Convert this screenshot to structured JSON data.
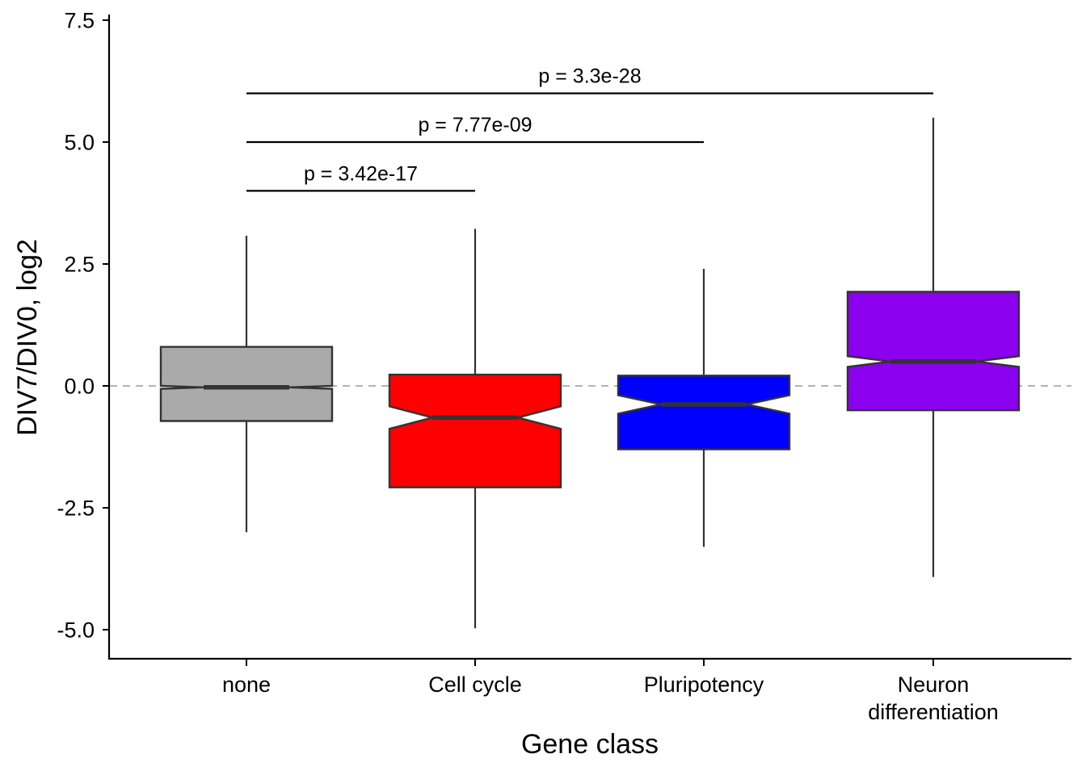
{
  "chart_data": {
    "type": "boxplot",
    "notched": true,
    "xlabel": "Gene class",
    "ylabel": "DIV7/DIV0, log2",
    "ylim": [
      -5.6,
      7.6
    ],
    "yticks": [
      -5.0,
      -2.5,
      0.0,
      2.5,
      5.0,
      7.5
    ],
    "ytick_labels": [
      "-5.0",
      "-2.5",
      "0.0",
      "2.5",
      "5.0",
      "7.5"
    ],
    "reference_line": {
      "y": 0.0,
      "style": "dashed",
      "color": "#b3b3b3"
    },
    "categories": [
      {
        "label": [
          "none"
        ],
        "color": "#aaaaaa",
        "whisker_low": -3.0,
        "q1": -0.72,
        "median": -0.03,
        "q3": 0.8,
        "whisker_high": 3.08,
        "notch_low": -0.06,
        "notch_high": 0.0
      },
      {
        "label": [
          "Cell cycle"
        ],
        "color": "#ff0000",
        "whisker_low": -4.97,
        "q1": -2.08,
        "median": -0.65,
        "q3": 0.23,
        "whisker_high": 3.22,
        "notch_low": -0.88,
        "notch_high": -0.42
      },
      {
        "label": [
          "Pluripotency"
        ],
        "color": "#0000ff",
        "whisker_low": -3.3,
        "q1": -1.3,
        "median": -0.38,
        "q3": 0.21,
        "whisker_high": 2.4,
        "notch_low": -0.57,
        "notch_high": -0.19
      },
      {
        "label": [
          "Neuron",
          "differentiation"
        ],
        "color": "#8b00ef",
        "whisker_low": -3.92,
        "q1": -0.5,
        "median": 0.5,
        "q3": 1.93,
        "whisker_high": 5.5,
        "notch_low": 0.39,
        "notch_high": 0.61
      }
    ],
    "comparisons": [
      {
        "from": 0,
        "to": 1,
        "y": 4.0,
        "label": "p = 3.42e-17"
      },
      {
        "from": 0,
        "to": 2,
        "y": 5.0,
        "label": "p = 7.77e-09"
      },
      {
        "from": 0,
        "to": 3,
        "y": 6.0,
        "label": "p = 3.3e-28"
      }
    ]
  }
}
